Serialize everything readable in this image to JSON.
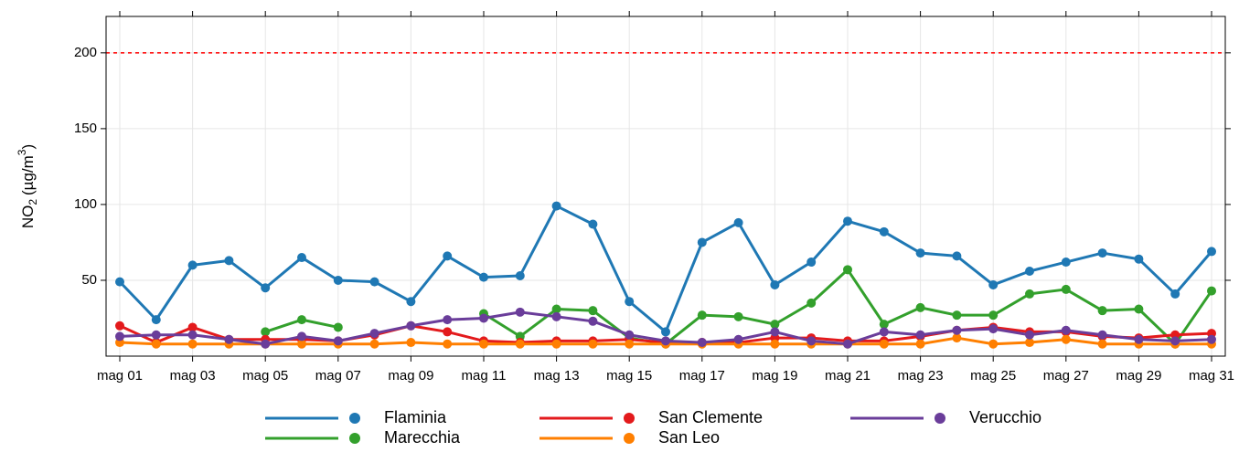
{
  "chart_data": {
    "type": "line",
    "y_label": {
      "base": "NO",
      "sub": "2",
      "unit": "(µg/m",
      "sup": "3",
      "close": ")"
    },
    "categories": [
      "mag 01",
      null,
      "mag 03",
      null,
      "mag 05",
      null,
      "mag 07",
      null,
      "mag 09",
      null,
      "mag 11",
      null,
      "mag 13",
      null,
      "mag 15",
      null,
      "mag 17",
      null,
      "mag 19",
      null,
      "mag 21",
      null,
      "mag 23",
      null,
      "mag 25",
      null,
      "mag 27",
      null,
      "mag 29",
      null,
      "mag 31"
    ],
    "series": [
      {
        "name": "Flaminia",
        "color": "#1f78b4",
        "values": [
          49,
          24,
          60,
          63,
          45,
          65,
          50,
          49,
          36,
          66,
          52,
          53,
          99,
          87,
          36,
          16,
          75,
          88,
          47,
          62,
          89,
          82,
          68,
          66,
          47,
          56,
          62,
          68,
          64,
          41,
          69
        ]
      },
      {
        "name": "Marecchia",
        "color": "#33a02c",
        "values": [
          null,
          null,
          null,
          null,
          16,
          24,
          19,
          null,
          null,
          null,
          28,
          13,
          31,
          30,
          12,
          8,
          27,
          26,
          21,
          35,
          57,
          21,
          32,
          27,
          27,
          41,
          44,
          30,
          31,
          8,
          43
        ]
      },
      {
        "name": "San Clemente",
        "color": "#e31a1c",
        "values": [
          20,
          9,
          19,
          11,
          11,
          11,
          10,
          14,
          20,
          16,
          10,
          9,
          10,
          10,
          11,
          9,
          9,
          9,
          12,
          12,
          10,
          10,
          13,
          17,
          19,
          16,
          16,
          13,
          12,
          14,
          15
        ]
      },
      {
        "name": "San Leo",
        "color": "#ff7f00",
        "values": [
          9,
          8,
          8,
          8,
          8,
          8,
          8,
          8,
          9,
          8,
          8,
          8,
          8,
          8,
          8,
          8,
          8,
          8,
          8,
          8,
          8,
          8,
          8,
          12,
          8,
          9,
          11,
          8,
          8,
          8,
          8
        ]
      },
      {
        "name": "Verucchio",
        "color": "#6a3d9a",
        "values": [
          13,
          14,
          14,
          11,
          8,
          13,
          10,
          15,
          20,
          24,
          25,
          29,
          26,
          23,
          14,
          10,
          9,
          11,
          16,
          10,
          8,
          16,
          14,
          17,
          18,
          14,
          17,
          14,
          11,
          10,
          11
        ]
      }
    ],
    "threshold": 200,
    "threshold_color": "#ff0000",
    "ylim": [
      0,
      224
    ],
    "yticks": [
      50,
      100,
      150,
      200
    ],
    "grid": true
  }
}
